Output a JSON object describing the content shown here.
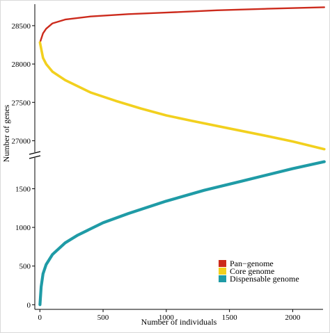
{
  "chart_data": {
    "type": "line",
    "title": "",
    "xlabel": "Number of individuals",
    "ylabel": "Number of genes",
    "x_ticks": [
      0,
      500,
      1000,
      1500,
      2000
    ],
    "xlim": [
      -40,
      2240
    ],
    "y_axis_break": true,
    "y_upper_ticks": [
      27000,
      27500,
      28000,
      28500
    ],
    "y_upper_range": [
      26850,
      28780
    ],
    "y_lower_ticks": [
      0,
      500,
      1000,
      1500
    ],
    "y_lower_range": [
      -60,
      1900
    ],
    "grid": false,
    "legend_position": "bottom-right",
    "series": [
      {
        "name": "Pan−genome",
        "color": "#cc2a1c",
        "x": [
          1,
          25,
          50,
          100,
          200,
          400,
          700,
          1000,
          1400,
          1800,
          2250
        ],
        "y": [
          28280,
          28400,
          28460,
          28530,
          28580,
          28620,
          28650,
          28670,
          28700,
          28720,
          28740
        ]
      },
      {
        "name": "Core genome",
        "color": "#f2d01e",
        "x": [
          1,
          25,
          50,
          100,
          200,
          400,
          600,
          800,
          1000,
          1200,
          1500,
          1800,
          2000,
          2250
        ],
        "y": [
          28280,
          28080,
          28000,
          27900,
          27790,
          27630,
          27520,
          27420,
          27330,
          27260,
          27160,
          27060,
          26990,
          26890
        ]
      },
      {
        "name": "Dispensable genome",
        "color": "#1f9ba6",
        "x": [
          1,
          10,
          25,
          50,
          100,
          200,
          300,
          500,
          700,
          1000,
          1300,
          1600,
          2000,
          2250
        ],
        "y": [
          0,
          230,
          400,
          520,
          650,
          800,
          900,
          1060,
          1180,
          1340,
          1480,
          1600,
          1760,
          1850
        ]
      }
    ]
  }
}
